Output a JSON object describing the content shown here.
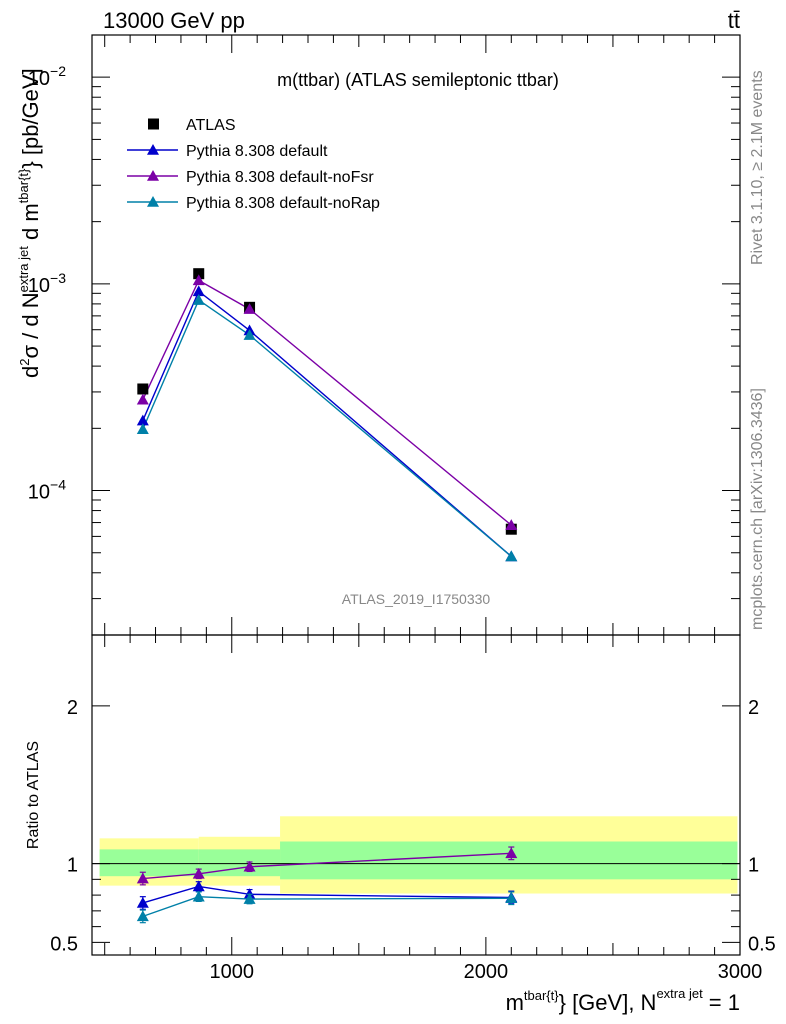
{
  "header": {
    "energy": "13000 GeV pp",
    "process": "tt̄"
  },
  "side_labels": {
    "rivet": "Rivet 3.1.10, ≥ 2.1M events",
    "mcplots": "mcplots.cern.ch [arXiv:1306.3436]"
  },
  "chart_data": [
    {
      "type": "scatter",
      "title": "m(ttbar) (ATLAS semileptonic ttbar)",
      "analysis_id": "ATLAS_2019_I1750330",
      "ylabel": "d²σ / d N^{extra jet} d m^{tbar{t}} [pb/GeV]",
      "ylabel_parts": {
        "d2": "d",
        "sup2": "2",
        "sigma": "σ / d N",
        "ej": "extra jet",
        "dm": " d m",
        "tbar": "tbar{t}",
        "unit": "} [pb/GeV]"
      },
      "yscale": "log",
      "ylim": [
        2e-05,
        0.016
      ],
      "xlim": [
        450,
        3000
      ],
      "yticks": [
        {
          "value": 0.0001,
          "base": "10",
          "exp": "−4"
        },
        {
          "value": 0.001,
          "base": "10",
          "exp": "−3"
        },
        {
          "value": 0.01,
          "base": "10",
          "exp": "−2"
        }
      ],
      "legend_position": "top-left",
      "series": [
        {
          "name": "ATLAS",
          "color": "#000000",
          "marker": "square",
          "x": [
            650,
            870,
            1070,
            2100
          ],
          "y": [
            0.00031,
            0.00112,
            0.00077,
            6.5e-05
          ]
        },
        {
          "name": "Pythia 8.308 default",
          "color": "#0000cc",
          "marker": "triangle",
          "x": [
            650,
            870,
            1070,
            2100
          ],
          "y": [
            0.000218,
            0.00092,
            0.000595,
            4.8e-05
          ]
        },
        {
          "name": "Pythia 8.308 default-noFsr",
          "color": "#7b00a6",
          "marker": "triangle",
          "x": [
            650,
            870,
            1070,
            2100
          ],
          "y": [
            0.000275,
            0.00104,
            0.000755,
            6.8e-05
          ]
        },
        {
          "name": "Pythia 8.308 default-noRap",
          "color": "#0080a8",
          "marker": "triangle",
          "x": [
            650,
            870,
            1070,
            2100
          ],
          "y": [
            0.000198,
            0.000835,
            0.000565,
            4.8e-05
          ]
        }
      ]
    },
    {
      "type": "scatter",
      "ylabel": "Ratio to ATLAS",
      "xlabel": "m^{tbar{t}} [GeV], N^{extra jet} = 1",
      "xlabel_parts": {
        "m": "m",
        "tbar": "tbar{t}",
        "mid": "} [GeV], N",
        "ej": "extra jet",
        "end": " = 1"
      },
      "ylim": [
        0.42,
        2.45
      ],
      "xlim": [
        450,
        3000
      ],
      "xticks": [
        1000,
        2000,
        3000
      ],
      "yticks": [
        0.5,
        1,
        2
      ],
      "bands": [
        {
          "x0": 480,
          "x1": 870,
          "green": [
            0.92,
            1.09
          ],
          "yellow": [
            0.86,
            1.16
          ]
        },
        {
          "x0": 870,
          "x1": 1190,
          "green": [
            0.92,
            1.09
          ],
          "yellow": [
            0.86,
            1.17
          ]
        },
        {
          "x0": 1190,
          "x1": 2990,
          "green": [
            0.9,
            1.14
          ],
          "yellow": [
            0.81,
            1.3
          ]
        }
      ],
      "series": [
        {
          "name": "Pythia 8.308 default",
          "color": "#0000cc",
          "x": [
            650,
            870,
            1070,
            2100
          ],
          "y": [
            0.75,
            0.855,
            0.805,
            0.785
          ],
          "err": [
            0.04,
            0.03,
            0.03,
            0.04
          ]
        },
        {
          "name": "Pythia 8.308 default-noFsr",
          "color": "#7b00a6",
          "x": [
            650,
            870,
            1070,
            2100
          ],
          "y": [
            0.905,
            0.935,
            0.98,
            1.065
          ],
          "err": [
            0.04,
            0.03,
            0.03,
            0.04
          ]
        },
        {
          "name": "Pythia 8.308 default-noRap",
          "color": "#0080a8",
          "x": [
            650,
            870,
            1070,
            2100
          ],
          "y": [
            0.665,
            0.79,
            0.775,
            0.78
          ],
          "err": [
            0.04,
            0.03,
            0.03,
            0.04
          ]
        }
      ]
    }
  ]
}
